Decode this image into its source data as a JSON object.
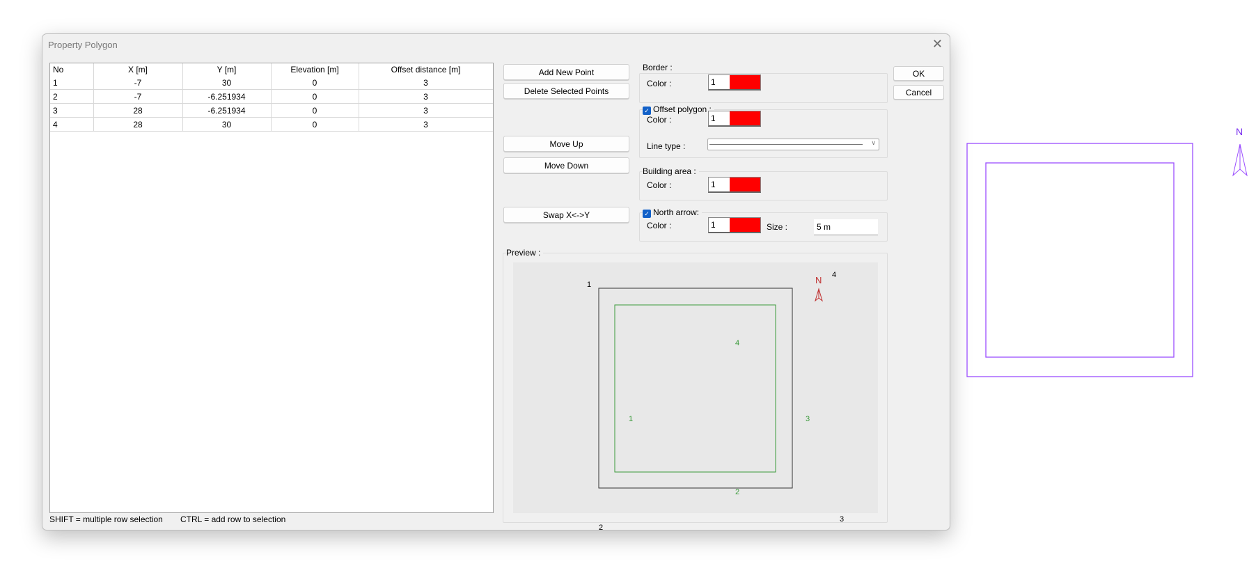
{
  "dialog": {
    "title": "Property Polygon"
  },
  "table": {
    "columns": [
      "No",
      "X [m]",
      "Y [m]",
      "Elevation [m]",
      "Offset distance [m]"
    ],
    "rows": [
      [
        "1",
        "-7",
        "30",
        "0",
        "3"
      ],
      [
        "2",
        "-7",
        "-6.251934",
        "0",
        "3"
      ],
      [
        "3",
        "28",
        "-6.251934",
        "0",
        "3"
      ],
      [
        "4",
        "28",
        "30",
        "0",
        "3"
      ]
    ]
  },
  "buttons": {
    "add": "Add New Point",
    "delete": "Delete Selected Points",
    "up": "Move Up",
    "down": "Move Down",
    "swap": "Swap X<->Y",
    "ok": "OK",
    "cancel": "Cancel"
  },
  "border": {
    "label": "Border :",
    "color_label": "Color :",
    "color_index": "1",
    "color": "#ff0000"
  },
  "offset": {
    "label": "Offset polygon :",
    "checked": true,
    "color_label": "Color :",
    "color_index": "1",
    "color": "#ff0000",
    "linetype_label": "Line type :"
  },
  "building": {
    "label": "Building area :",
    "color_label": "Color :",
    "color_index": "1",
    "color": "#ff0000"
  },
  "north": {
    "label": "North arrow:",
    "checked": true,
    "color_label": "Color :",
    "color_index": "1",
    "color": "#ff0000",
    "size_label": "Size :",
    "size_value": "5 m"
  },
  "preview": {
    "label": "Preview :",
    "border_labels": [
      "1",
      "2",
      "3",
      "4"
    ],
    "offset_labels": [
      "1",
      "2",
      "3",
      "4"
    ],
    "north": "N",
    "border_color": "#333333",
    "offset_color": "#3a9a3a",
    "arrow_color": "#c03030"
  },
  "footer": {
    "shift": "SHIFT = multiple row selection",
    "ctrl": "CTRL = add row to selection"
  },
  "canvas": {
    "north": "N",
    "color": "#9b4dff"
  }
}
